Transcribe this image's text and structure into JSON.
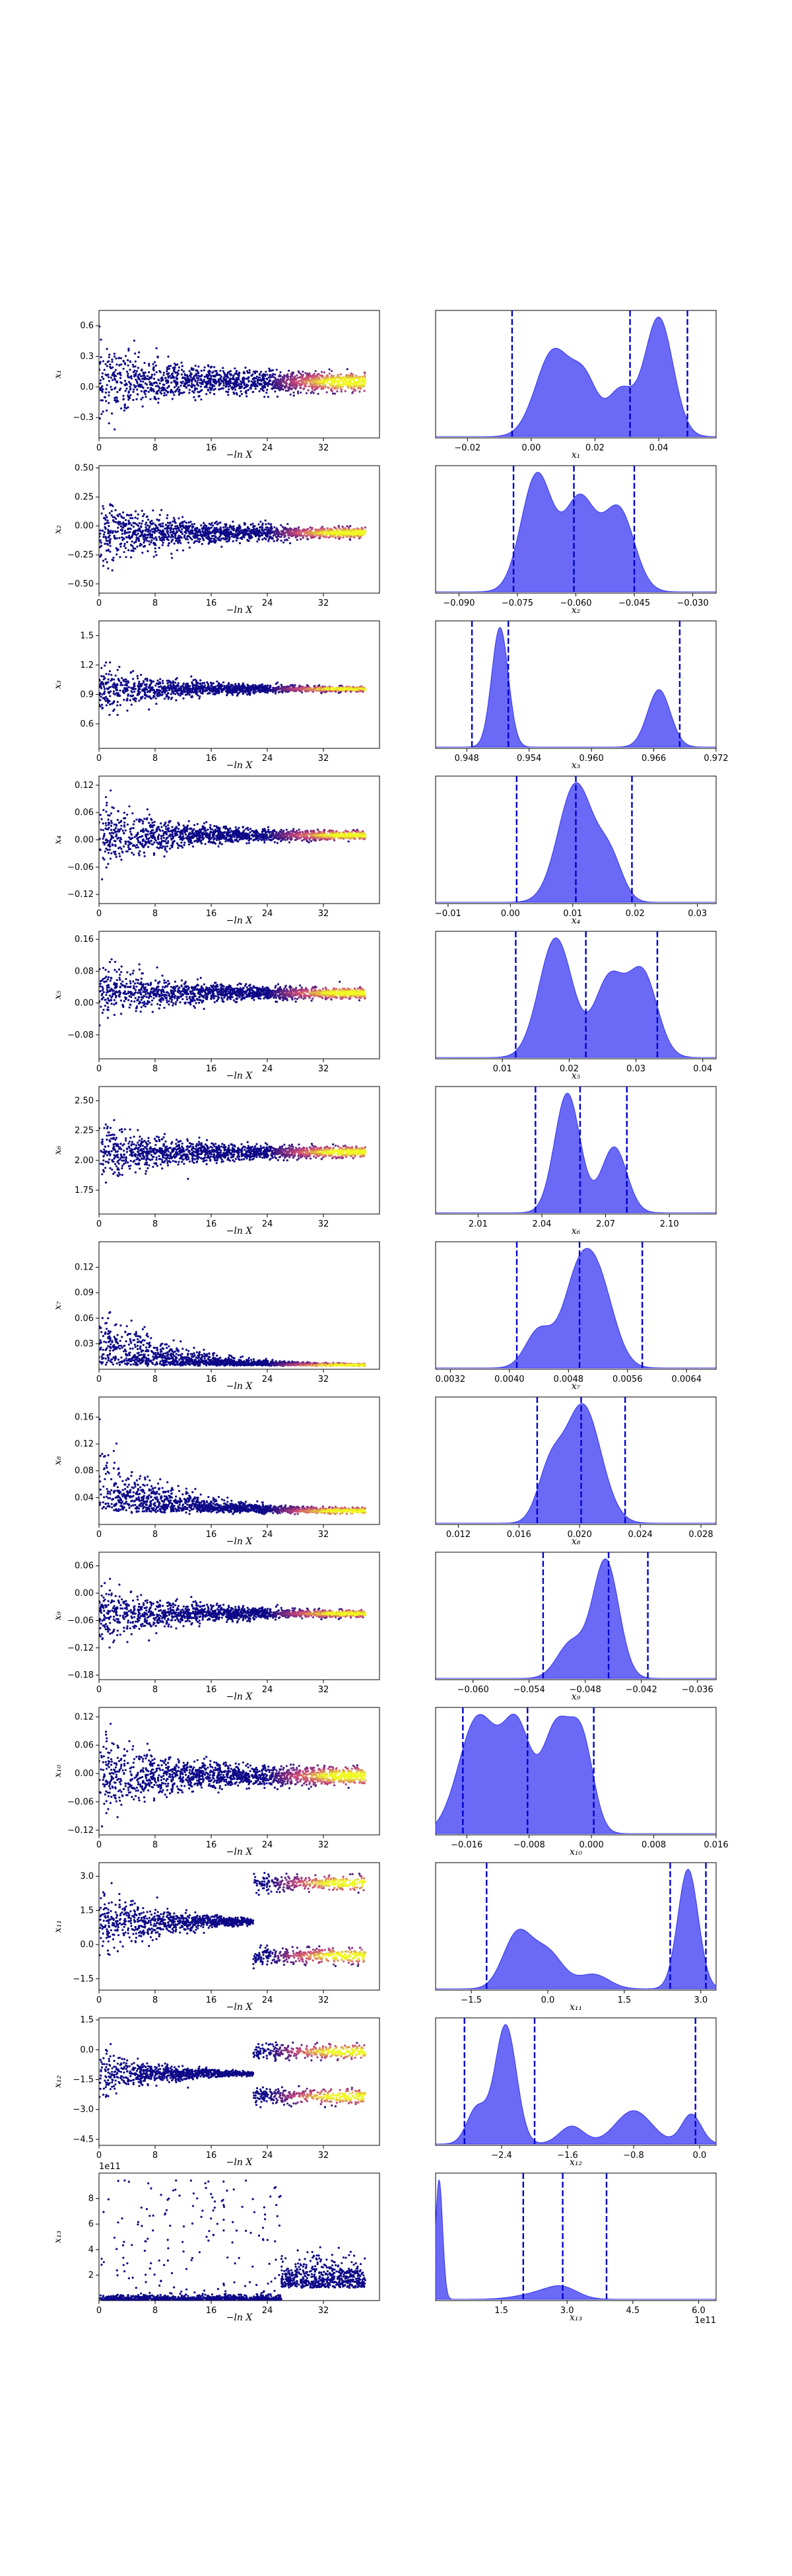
{
  "figure": {
    "type": "dynesty-trace-plot",
    "colors": {
      "trace_low": "#0d0887",
      "trace_mid": "#cc4778",
      "trace_high": "#f0f921",
      "kde_fill": "#5a5af5",
      "kde_edge": "#3333ee",
      "quantile_line": "#0000cc"
    }
  },
  "chart_data": [
    {
      "row": 1,
      "trace": {
        "type": "scatter",
        "xlabel": "−ln X",
        "ylabel": "x₁",
        "xticks": [
          "0",
          "8",
          "16",
          "24",
          "32"
        ],
        "yticks": [
          "0.6",
          "0.3",
          "0.0",
          "−0.3"
        ],
        "xlim": [
          0,
          40
        ],
        "ylim": [
          -0.5,
          0.75
        ],
        "center": 0.05,
        "spread": 0.32,
        "converge": 0.04
      },
      "posterior": {
        "type": "area",
        "xlabel": "x₁",
        "xticks": [
          "−0.02",
          "0.00",
          "0.02",
          "0.04"
        ],
        "xlim": [
          -0.03,
          0.058
        ],
        "quantiles": [
          -0.006,
          0.031,
          0.049
        ],
        "peaks": [
          [
            0.007,
            0.0055,
            0.72
          ],
          [
            0.017,
            0.004,
            0.42
          ],
          [
            0.028,
            0.004,
            0.38
          ],
          [
            0.04,
            0.0045,
            1.0
          ]
        ]
      }
    },
    {
      "row": 2,
      "trace": {
        "type": "scatter",
        "xlabel": "−ln X",
        "ylabel": "x₂",
        "xticks": [
          "0",
          "8",
          "16",
          "24",
          "32"
        ],
        "yticks": [
          "0.50",
          "0.25",
          "0.00",
          "−0.25",
          "−0.50"
        ],
        "xlim": [
          0,
          40
        ],
        "ylim": [
          -0.58,
          0.52
        ],
        "center": -0.06,
        "spread": 0.28,
        "converge": 0.02
      },
      "posterior": {
        "type": "area",
        "xlabel": "x₂",
        "xticks": [
          "−0.090",
          "−0.075",
          "−0.060",
          "−0.045",
          "−0.030"
        ],
        "xlim": [
          -0.096,
          -0.024
        ],
        "quantiles": [
          -0.076,
          -0.0605,
          -0.045
        ],
        "peaks": [
          [
            -0.07,
            0.004,
            1.0
          ],
          [
            -0.059,
            0.004,
            0.78
          ],
          [
            -0.049,
            0.004,
            0.7
          ]
        ]
      }
    },
    {
      "row": 3,
      "trace": {
        "type": "scatter",
        "xlabel": "−ln X",
        "ylabel": "x₃",
        "xticks": [
          "0",
          "8",
          "16",
          "24",
          "32"
        ],
        "yticks": [
          "1.5",
          "1.2",
          "0.9",
          "0.6"
        ],
        "xlim": [
          0,
          40
        ],
        "ylim": [
          0.35,
          1.65
        ],
        "center": 0.955,
        "spread": 0.25,
        "converge": 0.01
      },
      "posterior": {
        "type": "area",
        "xlabel": "x₃",
        "xticks": [
          "0.948",
          "0.954",
          "0.960",
          "0.966",
          "0.972"
        ],
        "xlim": [
          0.945,
          0.972
        ],
        "quantiles": [
          0.9485,
          0.952,
          0.9685
        ],
        "peaks": [
          [
            0.9512,
            0.0008,
            1.0
          ],
          [
            0.9665,
            0.0011,
            0.48
          ]
        ]
      }
    },
    {
      "row": 4,
      "trace": {
        "type": "scatter",
        "xlabel": "−ln X",
        "ylabel": "x₄",
        "xticks": [
          "0",
          "8",
          "16",
          "24",
          "32"
        ],
        "yticks": [
          "0.12",
          "0.06",
          "0.00",
          "−0.06",
          "−0.12"
        ],
        "xlim": [
          0,
          40
        ],
        "ylim": [
          -0.14,
          0.14
        ],
        "center": 0.01,
        "spread": 0.07,
        "converge": 0.004
      },
      "posterior": {
        "type": "area",
        "xlabel": "x₄",
        "xticks": [
          "−0.01",
          "0.00",
          "0.01",
          "0.02",
          "0.03"
        ],
        "xlim": [
          -0.012,
          0.033
        ],
        "quantiles": [
          0.001,
          0.0105,
          0.0195
        ],
        "peaks": [
          [
            0.0105,
            0.0028,
            1.0
          ],
          [
            0.016,
            0.002,
            0.35
          ]
        ]
      }
    },
    {
      "row": 5,
      "trace": {
        "type": "scatter",
        "xlabel": "−ln X",
        "ylabel": "x₅",
        "xticks": [
          "0",
          "8",
          "16",
          "24",
          "32"
        ],
        "yticks": [
          "0.16",
          "0.08",
          "0.00",
          "−0.08"
        ],
        "xlim": [
          0,
          40
        ],
        "ylim": [
          -0.14,
          0.18
        ],
        "center": 0.025,
        "spread": 0.06,
        "converge": 0.006
      },
      "posterior": {
        "type": "area",
        "xlabel": "x₅",
        "xticks": [
          "0.01",
          "0.02",
          "0.03",
          "0.04"
        ],
        "xlim": [
          0.0,
          0.042
        ],
        "quantiles": [
          0.012,
          0.0225,
          0.0332
        ],
        "peaks": [
          [
            0.018,
            0.0025,
            1.0
          ],
          [
            0.026,
            0.0022,
            0.65
          ],
          [
            0.031,
            0.0022,
            0.7
          ]
        ]
      }
    },
    {
      "row": 6,
      "trace": {
        "type": "scatter",
        "xlabel": "−ln X",
        "ylabel": "x₆",
        "xticks": [
          "0",
          "8",
          "16",
          "24",
          "32"
        ],
        "yticks": [
          "2.50",
          "2.25",
          "2.00",
          "1.75"
        ],
        "xlim": [
          0,
          40
        ],
        "ylim": [
          1.55,
          2.62
        ],
        "center": 2.07,
        "spread": 0.22,
        "converge": 0.02
      },
      "posterior": {
        "type": "area",
        "xlabel": "x₆",
        "xticks": [
          "2.01",
          "2.04",
          "2.07",
          "2.10"
        ],
        "xlim": [
          1.99,
          2.122
        ],
        "quantiles": [
          2.037,
          2.058,
          2.08
        ],
        "peaks": [
          [
            2.052,
            0.006,
            1.0
          ],
          [
            2.074,
            0.006,
            0.55
          ]
        ]
      }
    },
    {
      "row": 7,
      "trace": {
        "type": "scatter",
        "xlabel": "−ln X",
        "ylabel": "x₇",
        "xticks": [
          "0",
          "8",
          "16",
          "24",
          "32"
        ],
        "yticks": [
          "0.12",
          "0.09",
          "0.06",
          "0.03"
        ],
        "xlim": [
          0,
          40
        ],
        "ylim": [
          0.0,
          0.15
        ],
        "center": 0.0048,
        "spread": 0.05,
        "converge": 0.0005,
        "positive": true
      },
      "posterior": {
        "type": "area",
        "xlabel": "x₇",
        "xticks": [
          "0.0032",
          "0.0040",
          "0.0048",
          "0.0056",
          "0.0064"
        ],
        "xlim": [
          0.003,
          0.0068
        ],
        "quantiles": [
          0.0041,
          0.00495,
          0.0058
        ],
        "peaks": [
          [
            0.0044,
            0.00018,
            0.45
          ],
          [
            0.0049,
            0.0002,
            0.85
          ],
          [
            0.0052,
            0.00022,
            1.0
          ]
        ]
      }
    },
    {
      "row": 8,
      "trace": {
        "type": "scatter",
        "xlabel": "−ln X",
        "ylabel": "x₈",
        "xticks": [
          "0",
          "8",
          "16",
          "24",
          "32"
        ],
        "yticks": [
          "0.16",
          "0.12",
          "0.08",
          "0.04"
        ],
        "xlim": [
          0,
          40
        ],
        "ylim": [
          0.0,
          0.19
        ],
        "center": 0.02,
        "spread": 0.07,
        "converge": 0.002,
        "positive": true
      },
      "posterior": {
        "type": "area",
        "xlabel": "x₈",
        "xticks": [
          "0.012",
          "0.016",
          "0.020",
          "0.024",
          "0.028"
        ],
        "xlim": [
          0.0105,
          0.029
        ],
        "quantiles": [
          0.0172,
          0.0201,
          0.023
        ],
        "peaks": [
          [
            0.0202,
            0.0012,
            1.0
          ],
          [
            0.018,
            0.0008,
            0.4
          ]
        ]
      }
    },
    {
      "row": 9,
      "trace": {
        "type": "scatter",
        "xlabel": "−ln X",
        "ylabel": "x₉",
        "xticks": [
          "0",
          "8",
          "16",
          "24",
          "32"
        ],
        "yticks": [
          "0.06",
          "0.00",
          "−0.06",
          "−0.12",
          "−0.18"
        ],
        "xlim": [
          0,
          40
        ],
        "ylim": [
          -0.19,
          0.09
        ],
        "center": -0.045,
        "spread": 0.07,
        "converge": 0.003
      },
      "posterior": {
        "type": "area",
        "xlabel": "x₉",
        "xticks": [
          "−0.060",
          "−0.054",
          "−0.048",
          "−0.042",
          "−0.036"
        ],
        "xlim": [
          -0.064,
          -0.034
        ],
        "quantiles": [
          -0.0525,
          -0.0455,
          -0.0413
        ],
        "peaks": [
          [
            -0.0458,
            0.0014,
            1.0
          ],
          [
            -0.0495,
            0.0015,
            0.3
          ]
        ]
      }
    },
    {
      "row": 10,
      "trace": {
        "type": "scatter",
        "xlabel": "−ln X",
        "ylabel": "x₁₀",
        "xticks": [
          "0",
          "8",
          "16",
          "24",
          "32"
        ],
        "yticks": [
          "0.12",
          "0.06",
          "0.00",
          "−0.06",
          "−0.12"
        ],
        "xlim": [
          0,
          40
        ],
        "ylim": [
          -0.13,
          0.14
        ],
        "center": -0.005,
        "spread": 0.07,
        "converge": 0.008
      },
      "posterior": {
        "type": "area",
        "xlabel": "x₁₀",
        "xticks": [
          "−0.016",
          "−0.008",
          "0.000",
          "0.008",
          "0.016"
        ],
        "xlim": [
          -0.02,
          0.016
        ],
        "quantiles": [
          -0.0165,
          -0.0082,
          0.0003
        ],
        "peaks": [
          [
            -0.0145,
            0.0025,
            1.0
          ],
          [
            -0.0095,
            0.0018,
            0.85
          ],
          [
            -0.0045,
            0.0018,
            0.9
          ],
          [
            -0.0012,
            0.0015,
            0.75
          ]
        ]
      }
    },
    {
      "row": 11,
      "trace": {
        "type": "scatter",
        "xlabel": "−ln X",
        "ylabel": "x₁₁",
        "xticks": [
          "0",
          "8",
          "16",
          "24",
          "32"
        ],
        "yticks": [
          "3.0",
          "1.5",
          "0.0",
          "−1.5"
        ],
        "xlim": [
          0,
          40
        ],
        "ylim": [
          -2.0,
          3.6
        ],
        "center": 1.0,
        "spread": 1.5,
        "converge": 0.0,
        "bimodal": [
          -0.5,
          2.7
        ]
      },
      "posterior": {
        "type": "area",
        "xlabel": "x₁₁",
        "xticks": [
          "−1.5",
          "0.0",
          "1.5",
          "3.0"
        ],
        "xlim": [
          -2.2,
          3.3
        ],
        "quantiles": [
          -1.2,
          2.4,
          3.1
        ],
        "peaks": [
          [
            -0.6,
            0.28,
            0.45
          ],
          [
            0.0,
            0.3,
            0.3
          ],
          [
            0.9,
            0.3,
            0.12
          ],
          [
            2.75,
            0.2,
            1.0
          ]
        ]
      }
    },
    {
      "row": 12,
      "trace": {
        "type": "scatter",
        "xlabel": "−ln X",
        "ylabel": "x₁₂",
        "xticks": [
          "0",
          "8",
          "16",
          "24",
          "32"
        ],
        "yticks": [
          "1.5",
          "0.0",
          "−1.5",
          "−3.0",
          "−4.5"
        ],
        "xlim": [
          0,
          40
        ],
        "ylim": [
          -4.8,
          1.6
        ],
        "center": -1.2,
        "spread": 1.2,
        "converge": 0.0,
        "bimodal": [
          -2.35,
          -0.1
        ]
      },
      "posterior": {
        "type": "area",
        "xlabel": "x₁₂",
        "xticks": [
          "−2.4",
          "−1.6",
          "−0.8",
          "0.0"
        ],
        "xlim": [
          -3.2,
          0.2
        ],
        "quantiles": [
          -2.85,
          -2.0,
          -0.05
        ],
        "peaks": [
          [
            -2.35,
            0.13,
            1.0
          ],
          [
            -2.7,
            0.12,
            0.3
          ],
          [
            -1.55,
            0.15,
            0.15
          ],
          [
            -0.8,
            0.22,
            0.28
          ],
          [
            -0.1,
            0.12,
            0.25
          ]
        ]
      }
    },
    {
      "row": 13,
      "trace": {
        "type": "scatter",
        "xlabel": "−ln X",
        "ylabel": "x₁₃",
        "xticks": [
          "0",
          "8",
          "16",
          "24",
          "32"
        ],
        "yticks": [
          "8",
          "6",
          "4",
          "2"
        ],
        "offset": "1e11",
        "xlim": [
          0,
          40
        ],
        "ylim": [
          0.0,
          10.0
        ],
        "center": 0.3,
        "spread": 0.6,
        "converge": 0.0,
        "heavy": true
      },
      "posterior": {
        "type": "area",
        "xlabel": "x₁₃",
        "xticks": [
          "1.5",
          "3.0",
          "4.5",
          "6.0"
        ],
        "offset": "1e11",
        "xlim": [
          0.0,
          6.4
        ],
        "quantiles": [
          2.0,
          2.9,
          3.9
        ],
        "peaks": [
          [
            0.08,
            0.08,
            1.0
          ],
          [
            2.9,
            0.35,
            0.08
          ],
          [
            2.4,
            0.5,
            0.05
          ]
        ]
      }
    }
  ]
}
